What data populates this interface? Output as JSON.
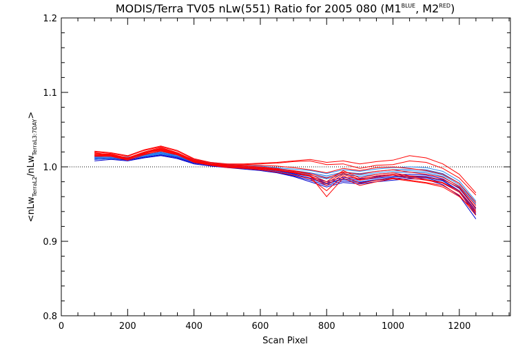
{
  "chart_data": {
    "type": "line",
    "title": "MODIS/Terra TV05 nLw(551) Ratio for 2005 080 (M1",
    "title_sup1": "BLUE",
    "title_mid": ", M2",
    "title_sup2": "RED",
    "title_end": ")",
    "xlabel": "Scan Pixel",
    "ylabel_parts": {
      "open": "<nLw",
      "sub1": "TerraL2",
      "mid": "/nLw",
      "sub2": "TerraL3:7DAY",
      "close": ">"
    },
    "xlim": [
      0,
      1354
    ],
    "ylim": [
      0.8,
      1.2
    ],
    "xticks": [
      0,
      200,
      400,
      600,
      800,
      1000,
      1200
    ],
    "yticks": [
      0.8,
      0.9,
      1.0,
      1.1,
      1.2
    ],
    "xtick_labels": [
      "0",
      "200",
      "400",
      "600",
      "800",
      "1000",
      "1200"
    ],
    "ytick_labels": [
      "0.8",
      "0.9",
      "1.0",
      "1.1",
      "1.2"
    ],
    "reference_line": 1.0,
    "x": [
      100,
      150,
      200,
      250,
      300,
      350,
      400,
      450,
      500,
      550,
      600,
      650,
      700,
      750,
      800,
      850,
      900,
      950,
      1000,
      1050,
      1100,
      1150,
      1200,
      1250
    ],
    "series": [
      {
        "group": "M1",
        "color": "#0000cc",
        "values": [
          1.01,
          1.011,
          1.009,
          1.013,
          1.016,
          1.012,
          1.005,
          1.002,
          1.0,
          0.998,
          0.996,
          0.993,
          0.988,
          0.982,
          0.975,
          0.981,
          0.979,
          0.982,
          0.984,
          0.986,
          0.985,
          0.979,
          0.966,
          0.936
        ]
      },
      {
        "group": "M1",
        "color": "#0000cc",
        "values": [
          1.012,
          1.013,
          1.011,
          1.015,
          1.018,
          1.014,
          1.007,
          1.003,
          1.001,
          0.999,
          0.997,
          0.995,
          0.99,
          0.985,
          0.978,
          0.984,
          0.982,
          0.985,
          0.987,
          0.988,
          0.987,
          0.982,
          0.968,
          0.94
        ]
      },
      {
        "group": "M1",
        "color": "#0000cc",
        "values": [
          1.008,
          1.01,
          1.008,
          1.012,
          1.015,
          1.011,
          1.004,
          1.001,
          0.999,
          0.997,
          0.995,
          0.992,
          0.987,
          0.98,
          0.973,
          0.979,
          0.977,
          0.98,
          0.982,
          0.984,
          0.983,
          0.976,
          0.961,
          0.93
        ]
      },
      {
        "group": "M1",
        "color": "#0000cc",
        "values": [
          1.014,
          1.014,
          1.012,
          1.016,
          1.019,
          1.015,
          1.008,
          1.004,
          1.002,
          1.0,
          0.998,
          0.996,
          0.991,
          0.987,
          0.98,
          0.986,
          0.984,
          0.987,
          0.989,
          0.99,
          0.989,
          0.984,
          0.971,
          0.944
        ]
      },
      {
        "group": "M1",
        "color": "#1a40d8",
        "values": [
          1.011,
          1.012,
          1.01,
          1.014,
          1.017,
          1.013,
          1.006,
          1.002,
          1.0,
          0.998,
          0.997,
          0.994,
          0.99,
          0.984,
          0.977,
          0.983,
          0.98,
          0.983,
          0.986,
          0.987,
          0.986,
          0.981,
          0.967,
          0.938
        ]
      },
      {
        "group": "M1",
        "color": "#1e6fe6",
        "values": [
          1.013,
          1.014,
          1.012,
          1.016,
          1.019,
          1.016,
          1.009,
          1.005,
          1.003,
          1.001,
          1.0,
          0.998,
          0.995,
          0.992,
          0.988,
          0.993,
          0.991,
          0.994,
          0.996,
          0.997,
          0.996,
          0.991,
          0.978,
          0.95
        ]
      },
      {
        "group": "M1",
        "color": "#2a8af0",
        "values": [
          1.015,
          1.015,
          1.013,
          1.017,
          1.02,
          1.017,
          1.01,
          1.006,
          1.004,
          1.002,
          1.001,
          0.999,
          0.997,
          0.995,
          0.991,
          0.996,
          0.994,
          0.997,
          0.999,
          1.0,
          0.999,
          0.994,
          0.981,
          0.954
        ]
      },
      {
        "group": "M1",
        "color": "#3399ff",
        "values": [
          1.012,
          1.013,
          1.011,
          1.015,
          1.018,
          1.015,
          1.008,
          1.004,
          1.002,
          1.0,
          0.999,
          0.997,
          0.994,
          0.991,
          0.986,
          0.991,
          0.989,
          0.992,
          0.994,
          0.995,
          0.994,
          0.989,
          0.976,
          0.948
        ]
      },
      {
        "group": "M1",
        "color": "#1e6fe6",
        "values": [
          1.01,
          1.011,
          1.01,
          1.014,
          1.017,
          1.014,
          1.007,
          1.003,
          1.001,
          0.999,
          0.998,
          0.996,
          0.993,
          0.989,
          0.984,
          0.99,
          0.987,
          0.99,
          0.992,
          0.993,
          0.992,
          0.987,
          0.973,
          0.945
        ]
      },
      {
        "group": "M2",
        "color": "#ff0000",
        "values": [
          1.018,
          1.017,
          1.012,
          1.02,
          1.026,
          1.019,
          1.009,
          1.004,
          1.002,
          1.001,
          1.0,
          0.998,
          0.994,
          0.99,
          0.98,
          0.995,
          0.985,
          0.99,
          0.992,
          0.988,
          0.986,
          0.983,
          0.972,
          0.945
        ]
      },
      {
        "group": "M2",
        "color": "#ff0000",
        "values": [
          1.016,
          1.015,
          1.01,
          1.018,
          1.024,
          1.018,
          1.007,
          1.003,
          1.001,
          1.0,
          0.998,
          0.996,
          0.992,
          0.987,
          0.975,
          0.99,
          0.982,
          0.986,
          0.989,
          0.985,
          0.982,
          0.978,
          0.966,
          0.938
        ]
      },
      {
        "group": "M2",
        "color": "#ff0000",
        "values": [
          1.02,
          1.018,
          1.014,
          1.022,
          1.027,
          1.021,
          1.01,
          1.005,
          1.003,
          1.003,
          1.004,
          1.005,
          1.007,
          1.008,
          1.003,
          1.004,
          0.998,
          1.002,
          1.003,
          1.008,
          1.006,
          0.998,
          0.985,
          0.962
        ]
      },
      {
        "group": "M2",
        "color": "#ff0000",
        "values": [
          1.014,
          1.014,
          1.009,
          1.016,
          1.022,
          1.016,
          1.006,
          1.002,
          0.999,
          0.998,
          0.996,
          0.993,
          0.989,
          0.984,
          0.968,
          0.988,
          0.978,
          0.982,
          0.985,
          0.982,
          0.979,
          0.975,
          0.962,
          0.935
        ]
      },
      {
        "group": "M2",
        "color": "#ff0000",
        "values": [
          1.019,
          1.016,
          1.011,
          1.019,
          1.025,
          1.019,
          1.008,
          1.004,
          1.002,
          1.002,
          1.002,
          1.001,
          0.999,
          0.996,
          0.992,
          0.998,
          0.995,
          0.999,
          1.0,
          0.998,
          0.995,
          0.99,
          0.978,
          0.952
        ]
      },
      {
        "group": "M2",
        "color": "#ff0000",
        "values": [
          1.017,
          1.016,
          1.012,
          1.018,
          1.023,
          1.017,
          1.008,
          1.003,
          1.001,
          1.0,
          0.999,
          0.997,
          0.995,
          0.991,
          0.985,
          0.993,
          0.99,
          0.994,
          0.996,
          0.993,
          0.99,
          0.986,
          0.974,
          0.948
        ]
      },
      {
        "group": "M2",
        "color": "#ff0000",
        "values": [
          1.015,
          1.015,
          1.011,
          1.017,
          1.021,
          1.016,
          1.007,
          1.003,
          1.0,
          0.999,
          0.997,
          0.995,
          0.992,
          0.988,
          0.96,
          0.985,
          0.975,
          0.98,
          0.984,
          0.981,
          0.978,
          0.973,
          0.96,
          0.94
        ]
      },
      {
        "group": "M2",
        "color": "#ff0000",
        "values": [
          1.021,
          1.019,
          1.015,
          1.023,
          1.028,
          1.022,
          1.011,
          1.006,
          1.004,
          1.004,
          1.005,
          1.006,
          1.008,
          1.01,
          1.006,
          1.008,
          1.004,
          1.007,
          1.009,
          1.015,
          1.012,
          1.004,
          0.99,
          0.965
        ]
      },
      {
        "group": "M2",
        "color": "#ff0000",
        "values": [
          1.016,
          1.016,
          1.012,
          1.019,
          1.024,
          1.018,
          1.008,
          1.003,
          1.001,
          1.0,
          0.999,
          0.996,
          0.993,
          0.988,
          0.978,
          0.992,
          0.983,
          0.988,
          0.99,
          0.987,
          0.983,
          0.979,
          0.968,
          0.942
        ]
      }
    ]
  }
}
